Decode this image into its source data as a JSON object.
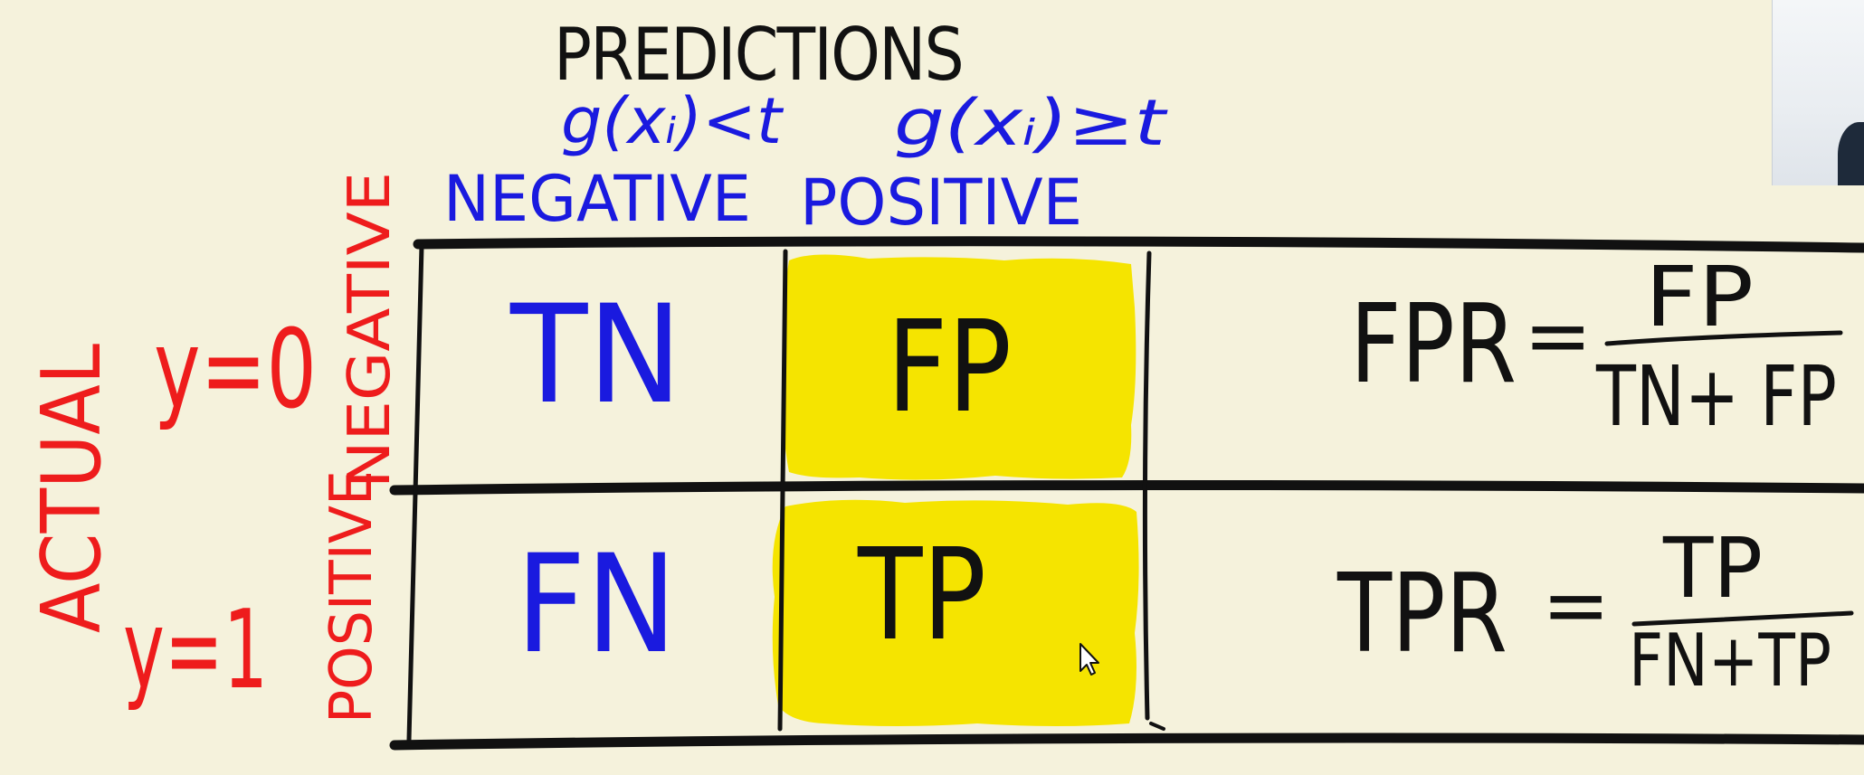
{
  "header": {
    "title": "PREDICTIONS",
    "condition_negative": "g(xᵢ)<t",
    "condition_positive": "g(xᵢ)≥t",
    "label_negative": "NEGATIVE",
    "label_positive": "POSITIVE"
  },
  "rows": {
    "actual_label": "ACTUAL",
    "row_negative_condition": "y=0",
    "row_positive_condition": "y=1",
    "row_negative_label": "NEGATIVE",
    "row_positive_label": "POSITIVE"
  },
  "cells": {
    "tn": "TN",
    "fp": "FP",
    "fn": "FN",
    "tp": "TP"
  },
  "formulas": {
    "fpr_lhs": "FPR",
    "fpr_eq": "=",
    "fpr_numerator": "FP",
    "fpr_denominator": "TN+ FP",
    "tpr_lhs": "TPR",
    "tpr_eq": "=",
    "tpr_numerator": "TP",
    "tpr_denominator": "FN+TP"
  },
  "colors": {
    "background": "#f5f2dc",
    "ink_black": "#111111",
    "ink_blue": "#1a1adf",
    "ink_red": "#ee1c1c",
    "highlight_yellow": "#f5e400"
  }
}
